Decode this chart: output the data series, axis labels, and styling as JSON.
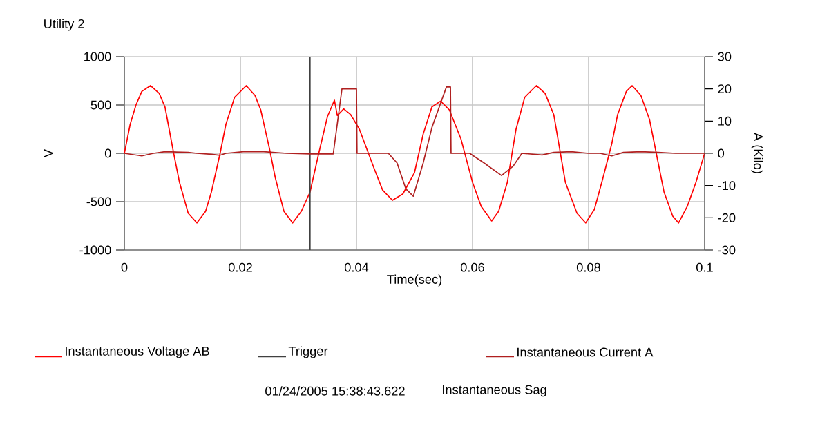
{
  "chart_data": {
    "type": "line",
    "title": "Utility 2",
    "xlabel": "Time(sec)",
    "ylabel": "V",
    "y2label": "A (Kilo)",
    "annotations": [
      "01/24/2005 15:38:43.622",
      "Instantaneous Sag"
    ],
    "xlim": [
      0,
      0.1
    ],
    "xticks": [
      0,
      0.02,
      0.04,
      0.06,
      0.08,
      0.1
    ],
    "ylim": [
      -1000,
      1000
    ],
    "yticks": [
      -1000,
      -500,
      0,
      500,
      1000
    ],
    "y2lim": [
      -30,
      30
    ],
    "y2ticks": [
      -30,
      -20,
      -10,
      0,
      10,
      20,
      30
    ],
    "grid": true,
    "legend": "bottom",
    "marker": "none",
    "line_style": "solid",
    "series": [
      {
        "name": "Instantaneous Voltage AB",
        "color": "#ff0000",
        "x": [
          0,
          0.001,
          0.002,
          0.003,
          0.0045,
          0.006,
          0.007,
          0.0085,
          0.0095,
          0.011,
          0.0125,
          0.014,
          0.015,
          0.0165,
          0.0175,
          0.019,
          0.021,
          0.0225,
          0.0235,
          0.025,
          0.026,
          0.0275,
          0.029,
          0.0305,
          0.032,
          0.0335,
          0.035,
          0.0362,
          0.0367,
          0.0378,
          0.039,
          0.0405,
          0.043,
          0.0445,
          0.0462,
          0.048,
          0.05,
          0.0515,
          0.053,
          0.0545,
          0.056,
          0.058,
          0.06,
          0.0615,
          0.0633,
          0.0645,
          0.066,
          0.0675,
          0.069,
          0.071,
          0.0725,
          0.074,
          0.075,
          0.076,
          0.078,
          0.0795,
          0.081,
          0.0825,
          0.084,
          0.085,
          0.0865,
          0.0875,
          0.089,
          0.0905,
          0.0915,
          0.093,
          0.0945,
          0.0955,
          0.097,
          0.0985,
          0.1
        ],
        "values": [
          0,
          300,
          500,
          640,
          700,
          620,
          480,
          0,
          -300,
          -620,
          -720,
          -600,
          -400,
          0,
          300,
          580,
          700,
          600,
          450,
          50,
          -250,
          -600,
          -720,
          -600,
          -400,
          0,
          380,
          550,
          390,
          460,
          400,
          250,
          -150,
          -380,
          -486,
          -420,
          -200,
          200,
          480,
          540,
          450,
          150,
          -300,
          -550,
          -700,
          -600,
          -300,
          250,
          580,
          700,
          620,
          400,
          50,
          -300,
          -620,
          -720,
          -580,
          -250,
          100,
          400,
          640,
          700,
          600,
          350,
          50,
          -400,
          -650,
          -720,
          -550,
          -300,
          0
        ]
      },
      {
        "name": "Trigger",
        "color": "#404040",
        "x": [
          0.032,
          0.032
        ],
        "values": [
          -1000,
          1000
        ]
      },
      {
        "name": "Instantaneous Current A",
        "color": "#b02020",
        "axis": "y2",
        "x": [
          0,
          0.003,
          0.005,
          0.007,
          0.011,
          0.0125,
          0.015,
          0.0165,
          0.0175,
          0.0205,
          0.024,
          0.028,
          0.032,
          0.036,
          0.0375,
          0.04,
          0.0401,
          0.0455,
          0.047,
          0.0485,
          0.0498,
          0.0515,
          0.053,
          0.0555,
          0.0562,
          0.0563,
          0.0595,
          0.062,
          0.065,
          0.067,
          0.0685,
          0.072,
          0.074,
          0.077,
          0.08,
          0.082,
          0.084,
          0.086,
          0.089,
          0.092,
          0.095,
          0.1
        ],
        "values": [
          0,
          -0.8,
          0,
          0.5,
          0.3,
          0,
          -0.3,
          -0.6,
          0,
          0.5,
          0.5,
          0,
          -0.2,
          -0.2,
          20,
          20,
          0,
          0,
          -3,
          -11,
          -13.3,
          -3,
          8,
          20.6,
          20.6,
          0,
          0,
          -3,
          -6.9,
          -4,
          0,
          -0.5,
          0.3,
          0.5,
          0,
          0,
          -0.8,
          0.3,
          0.5,
          0.3,
          0,
          0
        ]
      }
    ]
  }
}
